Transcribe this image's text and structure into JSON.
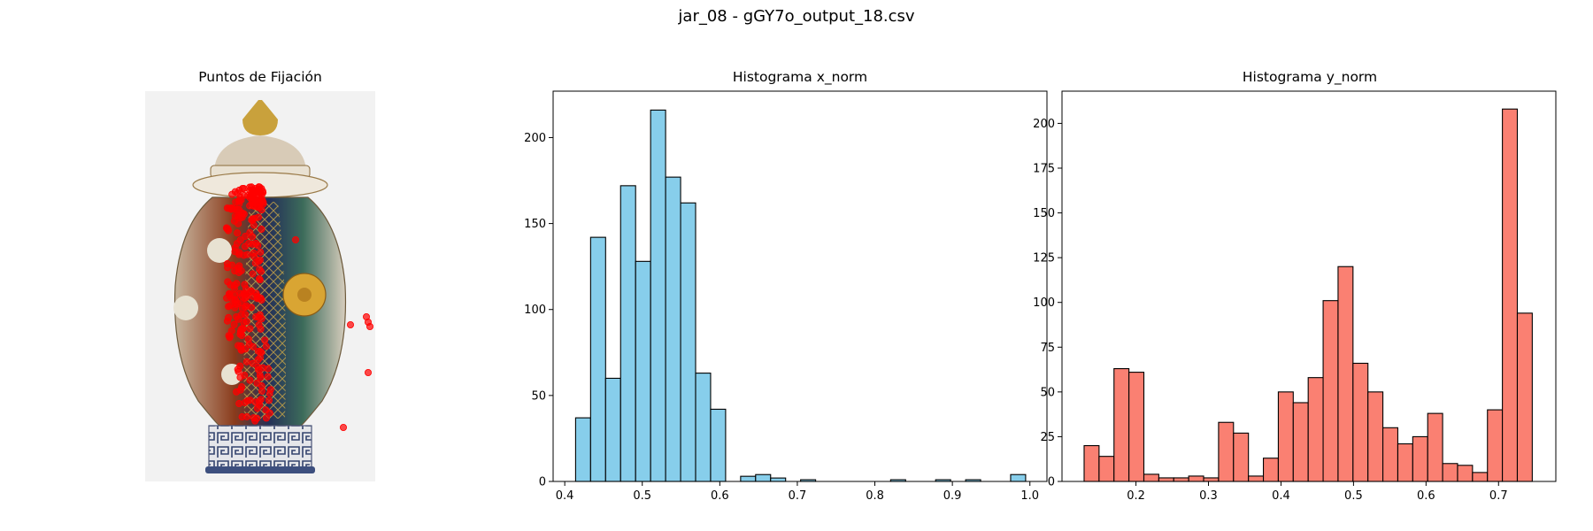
{
  "figure": {
    "title": "jar_08 - gGY7o_output_18.csv"
  },
  "image_panel": {
    "title": "Puntos de Fijación",
    "fixation_color": "#ff0000"
  },
  "chart_data": [
    {
      "type": "bar",
      "title": "Histograma x_norm",
      "xlabel": "",
      "ylabel": "",
      "color": "#87ceeb",
      "edgecolor": "#000000",
      "bin_start": 0.414,
      "bin_width": 0.01935,
      "values": [
        37,
        142,
        60,
        172,
        128,
        216,
        177,
        162,
        63,
        42,
        0,
        3,
        4,
        2,
        0,
        1,
        0,
        0,
        0,
        0,
        0,
        1,
        0,
        0,
        1,
        0,
        1,
        0,
        0,
        4
      ],
      "xlim": [
        0.385,
        1.022
      ],
      "ylim": [
        0,
        227
      ],
      "xticks": [
        0.4,
        0.5,
        0.6,
        0.7,
        0.8,
        0.9,
        1.0
      ],
      "xtick_labels": [
        "0.4",
        "0.5",
        "0.6",
        "0.7",
        "0.8",
        "0.9",
        "1.0"
      ],
      "yticks": [
        0,
        50,
        100,
        150,
        200
      ],
      "ytick_labels": [
        "0",
        "50",
        "100",
        "150",
        "200"
      ]
    },
    {
      "type": "bar",
      "title": "Histograma y_norm",
      "xlabel": "",
      "ylabel": "",
      "color": "#fa8072",
      "edgecolor": "#000000",
      "bin_start": 0.1285,
      "bin_width": 0.0206,
      "values": [
        20,
        14,
        63,
        61,
        4,
        2,
        2,
        3,
        2,
        33,
        27,
        3,
        13,
        50,
        44,
        58,
        101,
        120,
        66,
        50,
        30,
        21,
        25,
        38,
        10,
        9,
        5,
        40,
        208,
        94
      ],
      "xlim": [
        0.098,
        0.779
      ],
      "ylim": [
        0,
        218
      ],
      "xticks": [
        0.2,
        0.3,
        0.4,
        0.5,
        0.6,
        0.7
      ],
      "xtick_labels": [
        "0.2",
        "0.3",
        "0.4",
        "0.5",
        "0.6",
        "0.7"
      ],
      "yticks": [
        0,
        25,
        50,
        75,
        100,
        125,
        150,
        175,
        200
      ],
      "ytick_labels": [
        "0",
        "25",
        "50",
        "75",
        "100",
        "125",
        "150",
        "175",
        "200"
      ]
    }
  ]
}
